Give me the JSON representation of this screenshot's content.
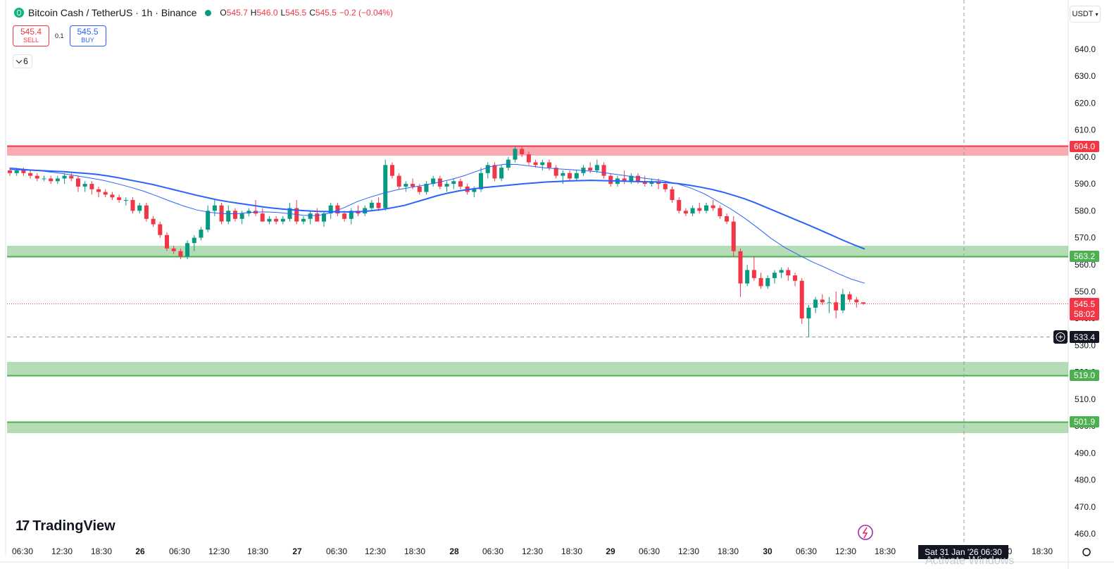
{
  "header": {
    "symbol": "Bitcoin Cash / TetherUS · 1h · Binance",
    "open_label": "O",
    "open": "545.7",
    "high_label": "H",
    "high": "546.0",
    "low_label": "L",
    "low": "545.5",
    "close_label": "C",
    "close": "545.5",
    "change": "−0.2 (−0.04%)"
  },
  "trade": {
    "sell_price": "545.4",
    "sell_label": "SELL",
    "spread": "0.1",
    "buy_price": "545.5",
    "buy_label": "BUY"
  },
  "indicators_toggle": {
    "count": "6"
  },
  "currency": {
    "label": "USDT"
  },
  "watermark": "TradingView",
  "crosshair": {
    "time_label": "Sat 31 Jan '26   06:30",
    "price_label": "533.4"
  },
  "price_axis": {
    "ticks": [
      "640.0",
      "630.0",
      "620.0",
      "610.0",
      "600.0",
      "590.0",
      "580.0",
      "570.0",
      "560.0",
      "550.0",
      "540.0",
      "530.0",
      "520.0",
      "510.0",
      "500.0",
      "490.0",
      "480.0",
      "470.0",
      "460.0"
    ]
  },
  "time_axis": {
    "ticks": [
      "06:30",
      "12:30",
      "18:30",
      "26",
      "06:30",
      "12:30",
      "18:30",
      "27",
      "06:30",
      "12:30",
      "18:30",
      "28",
      "06:30",
      "12:30",
      "18:30",
      "29",
      "06:30",
      "12:30",
      "18:30",
      "30",
      "06:30",
      "12:30",
      "18:30",
      "0",
      "18:30"
    ]
  },
  "levels": [
    {
      "label": "604.0",
      "color": "#f23645",
      "zone": "red"
    },
    {
      "label": "563.2",
      "color": "#4caf50",
      "zone": "green"
    },
    {
      "label": "519.0",
      "color": "#4caf50",
      "zone": "green"
    },
    {
      "label": "501.9",
      "color": "#4caf50",
      "zone": "green"
    }
  ],
  "last_price": {
    "price": "545.5",
    "countdown": "58:02",
    "color": "#f23645"
  },
  "overlay_text": "Activate Windows",
  "colors": {
    "up": "#089981",
    "down": "#f23645",
    "ma_fast": "#2962ff",
    "ma_slow": "#2962ff"
  },
  "chart_data": {
    "type": "candlestick",
    "ylim": [
      456,
      646
    ],
    "candles": [
      [
        595,
        596,
        593,
        594
      ],
      [
        594,
        596,
        593,
        595
      ],
      [
        595,
        596,
        593,
        594
      ],
      [
        594,
        595,
        592,
        593
      ],
      [
        593,
        594,
        591,
        592
      ],
      [
        592,
        593,
        591,
        592
      ],
      [
        592,
        593,
        590,
        591
      ],
      [
        591,
        593,
        590,
        592
      ],
      [
        592,
        594,
        590,
        593
      ],
      [
        593,
        594,
        591,
        592
      ],
      [
        592,
        593,
        587,
        589
      ],
      [
        589,
        591,
        587,
        590
      ],
      [
        590,
        591,
        586,
        588
      ],
      [
        588,
        589,
        585,
        587
      ],
      [
        587,
        588,
        585,
        586
      ],
      [
        586,
        587,
        584,
        585
      ],
      [
        585,
        586,
        583,
        584
      ],
      [
        584,
        585,
        582,
        584
      ],
      [
        584,
        585,
        579,
        580
      ],
      [
        580,
        583,
        579,
        582
      ],
      [
        582,
        583,
        576,
        577
      ],
      [
        577,
        578,
        574,
        575
      ],
      [
        575,
        576,
        570,
        571
      ],
      [
        571,
        572,
        565,
        566
      ],
      [
        566,
        567,
        564,
        565
      ],
      [
        565,
        566,
        562,
        563
      ],
      [
        563,
        569,
        562,
        568
      ],
      [
        568,
        571,
        565,
        570
      ],
      [
        570,
        574,
        569,
        573
      ],
      [
        573,
        582,
        572,
        580
      ],
      [
        580,
        584,
        578,
        582
      ],
      [
        582,
        583,
        575,
        576
      ],
      [
        576,
        582,
        575,
        580
      ],
      [
        580,
        581,
        576,
        577
      ],
      [
        577,
        580,
        575,
        579
      ],
      [
        579,
        581,
        578,
        580
      ],
      [
        580,
        584,
        578,
        579
      ],
      [
        579,
        581,
        576,
        576
      ],
      [
        576,
        578,
        575,
        577
      ],
      [
        577,
        578,
        575,
        576
      ],
      [
        576,
        578,
        575,
        577
      ],
      [
        577,
        583,
        576,
        581
      ],
      [
        581,
        584,
        575,
        576
      ],
      [
        576,
        578,
        575,
        577
      ],
      [
        577,
        580,
        575,
        579
      ],
      [
        579,
        581,
        576,
        576
      ],
      [
        576,
        580,
        574,
        579
      ],
      [
        579,
        583,
        577,
        582
      ],
      [
        582,
        583,
        578,
        579
      ],
      [
        579,
        580,
        576,
        577
      ],
      [
        577,
        581,
        575,
        580
      ],
      [
        580,
        582,
        578,
        579
      ],
      [
        579,
        582,
        578,
        581
      ],
      [
        581,
        584,
        580,
        583
      ],
      [
        583,
        585,
        580,
        581
      ],
      [
        581,
        599,
        580,
        597
      ],
      [
        597,
        598,
        592,
        593
      ],
      [
        593,
        594,
        588,
        589
      ],
      [
        589,
        591,
        587,
        590
      ],
      [
        590,
        592,
        588,
        589
      ],
      [
        589,
        590,
        586,
        587
      ],
      [
        587,
        591,
        586,
        590
      ],
      [
        590,
        593,
        589,
        592
      ],
      [
        592,
        593,
        588,
        589
      ],
      [
        589,
        591,
        587,
        590
      ],
      [
        590,
        592,
        588,
        591
      ],
      [
        591,
        592,
        588,
        589
      ],
      [
        589,
        590,
        586,
        587
      ],
      [
        587,
        589,
        585,
        588
      ],
      [
        588,
        596,
        587,
        594
      ],
      [
        594,
        598,
        592,
        597
      ],
      [
        597,
        598,
        591,
        592
      ],
      [
        592,
        597,
        591,
        596
      ],
      [
        596,
        600,
        595,
        599
      ],
      [
        599,
        604,
        598,
        603
      ],
      [
        603,
        604,
        600,
        601
      ],
      [
        601,
        602,
        597,
        598
      ],
      [
        598,
        599,
        596,
        597
      ],
      [
        597,
        599,
        595,
        598
      ],
      [
        598,
        599,
        595,
        596
      ],
      [
        596,
        597,
        592,
        593
      ],
      [
        593,
        595,
        590,
        594
      ],
      [
        594,
        595,
        591,
        592
      ],
      [
        592,
        595,
        591,
        594
      ],
      [
        594,
        597,
        593,
        596
      ],
      [
        596,
        598,
        594,
        595
      ],
      [
        595,
        599,
        594,
        597
      ],
      [
        597,
        598,
        592,
        593
      ],
      [
        593,
        594,
        589,
        590
      ],
      [
        590,
        593,
        589,
        592
      ],
      [
        592,
        595,
        590,
        591
      ],
      [
        591,
        594,
        590,
        593
      ],
      [
        593,
        594,
        590,
        591
      ],
      [
        591,
        593,
        589,
        590
      ],
      [
        590,
        592,
        589,
        591
      ],
      [
        591,
        592,
        588,
        590
      ],
      [
        590,
        591,
        587,
        588
      ],
      [
        588,
        589,
        583,
        584
      ],
      [
        584,
        585,
        579,
        580
      ],
      [
        580,
        581,
        578,
        579
      ],
      [
        579,
        582,
        578,
        581
      ],
      [
        581,
        583,
        579,
        580
      ],
      [
        580,
        583,
        579,
        582
      ],
      [
        582,
        584,
        580,
        581
      ],
      [
        581,
        582,
        577,
        578
      ],
      [
        578,
        579,
        575,
        576
      ],
      [
        576,
        578,
        563,
        565
      ],
      [
        565,
        566,
        548,
        553
      ],
      [
        553,
        560,
        552,
        558
      ],
      [
        558,
        563,
        554,
        555
      ],
      [
        555,
        557,
        551,
        552
      ],
      [
        552,
        556,
        551,
        555
      ],
      [
        555,
        558,
        553,
        557
      ],
      [
        557,
        559,
        555,
        558
      ],
      [
        558,
        559,
        554,
        556
      ],
      [
        556,
        557,
        552,
        554
      ],
      [
        554,
        555,
        538,
        540
      ],
      [
        540,
        545,
        533,
        544
      ],
      [
        544,
        548,
        542,
        547
      ],
      [
        547,
        549,
        545,
        546
      ],
      [
        546,
        548,
        542,
        546
      ],
      [
        546,
        550,
        540,
        543
      ],
      [
        543,
        551,
        542,
        549
      ],
      [
        549,
        550,
        546,
        547
      ],
      [
        547,
        548,
        544,
        546
      ],
      [
        546,
        546,
        545,
        545.5
      ]
    ],
    "ma_fast": [
      595.5,
      595.3,
      595.1,
      594.9,
      594.7,
      594.5,
      594.2,
      593.9,
      593.5,
      592.9,
      592.2,
      591.4,
      590.6,
      589.8,
      588.8,
      587.8,
      586.8,
      585.8,
      584.9,
      584,
      583.3,
      582.7,
      582.1,
      581.5,
      581,
      580.6,
      580.3,
      580,
      579.8,
      579.7,
      579.6,
      579.6,
      579.7,
      580,
      580.5,
      581.2,
      582,
      583.2,
      584.4,
      585.6,
      586.6,
      587.4,
      588,
      588.5,
      588.9,
      589.3,
      589.7,
      590.1,
      590.4,
      590.7,
      590.9,
      591.1,
      591.2,
      591.3,
      591.2,
      591.1,
      591,
      590.9,
      590.8,
      590.7,
      590.5,
      590.1,
      589.5,
      588.8,
      588,
      587,
      585.8,
      584.5,
      583,
      581.3,
      579.6,
      577.9,
      576.2,
      574.5,
      572.7,
      570.9,
      569.1,
      567.4,
      565.8
    ],
    "ma_slow": [
      596,
      595.5,
      595,
      594.4,
      593.8,
      593,
      592.2,
      591.3,
      590.1,
      588.8,
      587.3,
      585.5,
      583.6,
      581.8,
      580.3,
      579.4,
      578.9,
      578.9,
      579.4,
      579.6,
      579.4,
      578.9,
      578.3,
      578.2,
      579.2,
      581.1,
      583.4,
      585.1,
      586.6,
      587.8,
      588.7,
      589.5,
      590.5,
      591.6,
      593,
      594.8,
      596.4,
      597.3,
      597.2,
      596.6,
      596,
      595.6,
      595.3,
      594.9,
      594.5,
      593.8,
      593.1,
      592.4,
      591.8,
      591.1,
      590,
      588.4,
      586.3,
      583.5,
      580.6,
      577.3,
      573.6,
      569.7,
      566.4,
      563.7,
      561.2,
      559,
      556.7,
      554.6,
      553.1
    ]
  }
}
